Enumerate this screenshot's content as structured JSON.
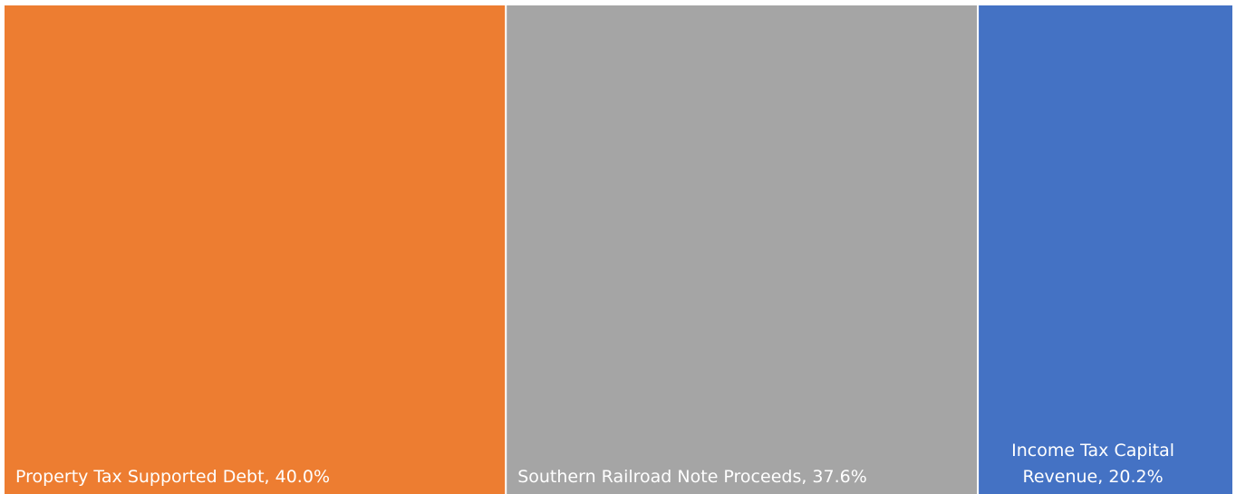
{
  "chart_data": {
    "type": "treemap",
    "title": "",
    "items": [
      {
        "label": "Property Tax Supported Debt",
        "value": 40.0,
        "value_label": "40.0%",
        "color": "#ED7D31"
      },
      {
        "label": "Southern Railroad Note Proceeds",
        "value": 37.6,
        "value_label": "37.6%",
        "color": "#A5A5A5"
      },
      {
        "label": "Income Tax Capital Revenue",
        "value": 20.2,
        "value_label": "20.2%",
        "color": "#4472C4"
      }
    ]
  }
}
